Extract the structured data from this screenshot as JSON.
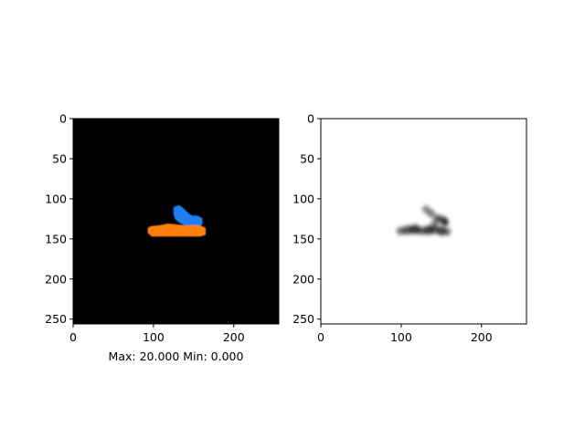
{
  "chart_data": [
    {
      "type": "heatmap",
      "title": "",
      "xlabel": "Max: 20.000 Min: 0.000",
      "ylabel": "",
      "xlim": [
        0,
        256
      ],
      "ylim": [
        256,
        0
      ],
      "x_ticks": [
        0,
        100,
        200
      ],
      "y_ticks": [
        0,
        50,
        100,
        150,
        200,
        250
      ],
      "x_tick_labels": [
        "0",
        "100",
        "200"
      ],
      "y_tick_labels": [
        "0",
        "50",
        "100",
        "150",
        "200",
        "250"
      ],
      "background_color": "#000000",
      "grid": false,
      "regions": [
        {
          "color": "#1a80f0",
          "outline": [
            [
              126,
              111
            ],
            [
              132,
              109
            ],
            [
              138,
              114
            ],
            [
              143,
              119
            ],
            [
              148,
              122
            ],
            [
              155,
              122
            ],
            [
              160,
              125
            ],
            [
              160,
              131
            ],
            [
              154,
              134
            ],
            [
              148,
              133
            ],
            [
              140,
              132
            ],
            [
              133,
              129
            ],
            [
              128,
              125
            ],
            [
              126,
              119
            ]
          ]
        },
        {
          "color": "#ff7f0e",
          "outline": [
            [
              97,
              135
            ],
            [
              108,
              134
            ],
            [
              118,
              132
            ],
            [
              128,
              133
            ],
            [
              138,
              134
            ],
            [
              148,
              134
            ],
            [
              158,
              134
            ],
            [
              164,
              137
            ],
            [
              164,
              144
            ],
            [
              158,
              146
            ],
            [
              148,
              146
            ],
            [
              138,
              146
            ],
            [
              128,
              146
            ],
            [
              118,
              146
            ],
            [
              108,
              146
            ],
            [
              98,
              146
            ],
            [
              94,
              142
            ],
            [
              94,
              137
            ]
          ]
        }
      ]
    },
    {
      "type": "heatmap",
      "title": "",
      "xlabel": "",
      "ylabel": "",
      "xlim": [
        0,
        256
      ],
      "ylim": [
        256,
        0
      ],
      "x_ticks": [
        0,
        100,
        200
      ],
      "y_ticks": [
        0,
        50,
        100,
        150,
        200,
        250
      ],
      "x_tick_labels": [
        "0",
        "100",
        "200"
      ],
      "y_tick_labels": [
        "0",
        "50",
        "100",
        "150",
        "200",
        "250"
      ],
      "background_color": "#ffffff",
      "grid": false,
      "blobs": [
        {
          "x": 100,
          "y": 140,
          "rx": 6,
          "ry": 5,
          "intensity": 0.55
        },
        {
          "x": 108,
          "y": 139,
          "rx": 6,
          "ry": 6,
          "intensity": 0.6
        },
        {
          "x": 117,
          "y": 138,
          "rx": 7,
          "ry": 6,
          "intensity": 0.75
        },
        {
          "x": 126,
          "y": 140,
          "rx": 6,
          "ry": 5,
          "intensity": 0.6
        },
        {
          "x": 134,
          "y": 139,
          "rx": 6,
          "ry": 6,
          "intensity": 0.7
        },
        {
          "x": 141,
          "y": 138,
          "rx": 6,
          "ry": 6,
          "intensity": 0.65
        },
        {
          "x": 150,
          "y": 140,
          "rx": 6,
          "ry": 6,
          "intensity": 0.7
        },
        {
          "x": 157,
          "y": 141,
          "rx": 5,
          "ry": 5,
          "intensity": 0.55
        },
        {
          "x": 131,
          "y": 113,
          "rx": 5,
          "ry": 5,
          "intensity": 0.45
        },
        {
          "x": 137,
          "y": 118,
          "rx": 5,
          "ry": 5,
          "intensity": 0.5
        },
        {
          "x": 145,
          "y": 124,
          "rx": 5,
          "ry": 5,
          "intensity": 0.55
        },
        {
          "x": 151,
          "y": 126,
          "rx": 5,
          "ry": 5,
          "intensity": 0.6
        },
        {
          "x": 155,
          "y": 129,
          "rx": 4,
          "ry": 5,
          "intensity": 0.85
        },
        {
          "x": 142,
          "y": 130,
          "rx": 5,
          "ry": 4,
          "intensity": 0.45
        }
      ]
    }
  ]
}
